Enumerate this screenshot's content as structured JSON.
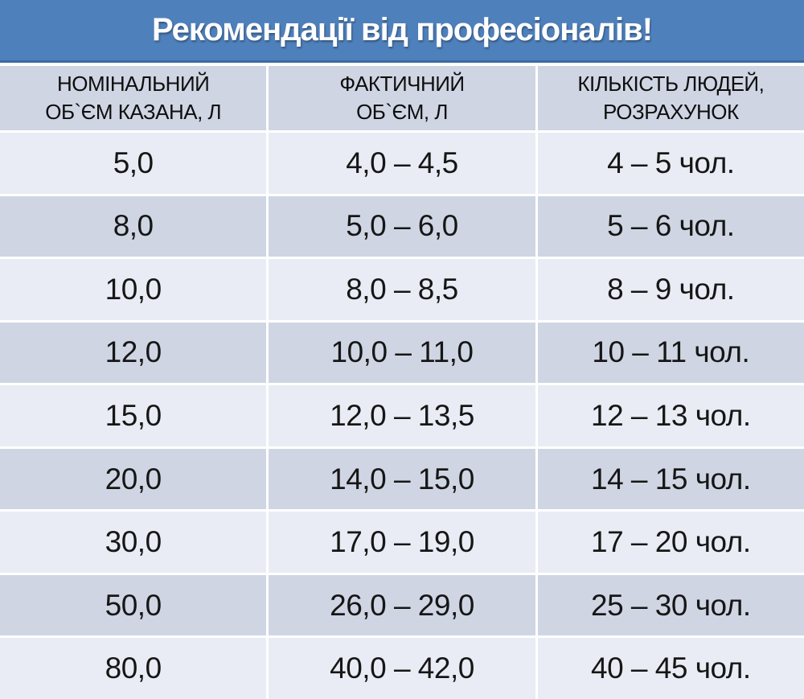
{
  "title": "Рекомендації від професіоналів!",
  "colors": {
    "banner": "#4e80bc",
    "banner_border": "#3c6aa0",
    "title_text": "#ffffff",
    "row_light": "#e9ecf4",
    "row_dark": "#cfd5e3",
    "header_text": "#0e0e0e",
    "text": "#161616"
  },
  "chart_data": {
    "type": "table",
    "title": "Рекомендації від професіоналів!",
    "columns": [
      {
        "label": "НОМІНАЛЬНИЙ ОБ`ЄМ КАЗАНА, Л",
        "line1": "НОМІНАЛЬНИЙ",
        "line2": "ОБ`ЄМ КАЗАНА, Л"
      },
      {
        "label": "ФАКТИЧНИЙ ОБ`ЄМ, Л",
        "line1": "ФАКТИЧНИЙ",
        "line2": "ОБ`ЄМ, Л"
      },
      {
        "label": "КІЛЬКІСТЬ ЛЮДЕЙ, РОЗРАХУНОК",
        "line1": "КІЛЬКІСТЬ ЛЮДЕЙ,",
        "line2": "РОЗРАХУНОК"
      }
    ],
    "rows": [
      [
        "5,0",
        "4,0 – 4,5",
        "4 – 5 чол."
      ],
      [
        "8,0",
        "5,0 – 6,0",
        "5 – 6 чол."
      ],
      [
        "10,0",
        "8,0 – 8,5",
        "8 – 9 чол."
      ],
      [
        "12,0",
        "10,0 – 11,0",
        "10 – 11 чол."
      ],
      [
        "15,0",
        "12,0 – 13,5",
        "12 – 13 чол."
      ],
      [
        "20,0",
        "14,0 – 15,0",
        "14 – 15 чол."
      ],
      [
        "30,0",
        "17,0 – 19,0",
        "17 – 20 чол."
      ],
      [
        "50,0",
        "26,0 – 29,0",
        "25 – 30 чол."
      ],
      [
        "80,0",
        "40,0 – 42,0",
        "40 – 45 чол."
      ]
    ]
  }
}
